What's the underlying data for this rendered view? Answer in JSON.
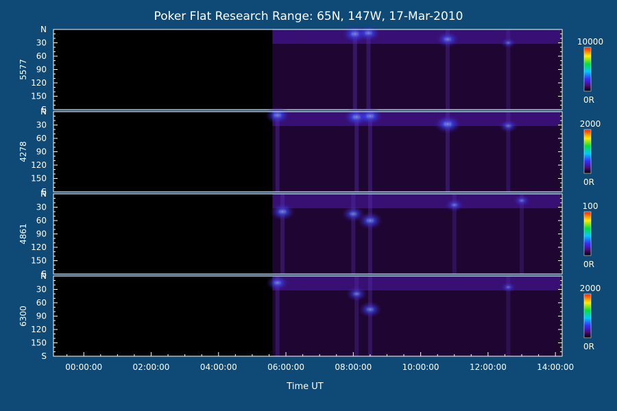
{
  "chart_data": {
    "type": "heatmap",
    "title": "Poker Flat Research Range: 65N, 147W, 17-Mar-2010",
    "xlabel": "Time UT",
    "x_tick_labels": [
      "00:00:00",
      "02:00:00",
      "04:00:00",
      "06:00:00",
      "08:00:00",
      "10:00:00",
      "12:00:00",
      "14:00:00"
    ],
    "x_range_hours": [
      -0.9,
      14.2
    ],
    "y_tick_labels": [
      "N",
      "30",
      "60",
      "90",
      "120",
      "150",
      "S"
    ],
    "y_range_deg": [
      0,
      180
    ],
    "data_start_hour": 5.6,
    "panels": [
      {
        "label": "5577",
        "colorbar_max": "10000",
        "colorbar_min": "0R",
        "events": [
          {
            "t": 8.05,
            "deg": 10,
            "strength": 0.95
          },
          {
            "t": 8.45,
            "deg": 8,
            "strength": 0.85
          },
          {
            "t": 10.8,
            "deg": 22,
            "strength": 0.8
          },
          {
            "t": 12.6,
            "deg": 30,
            "strength": 0.4
          }
        ]
      },
      {
        "label": "4278",
        "colorbar_max": "2000",
        "colorbar_min": "0R",
        "events": [
          {
            "t": 5.75,
            "deg": 8,
            "strength": 0.9
          },
          {
            "t": 8.1,
            "deg": 12,
            "strength": 1.0
          },
          {
            "t": 8.5,
            "deg": 10,
            "strength": 0.95
          },
          {
            "t": 10.8,
            "deg": 28,
            "strength": 1.0
          },
          {
            "t": 12.6,
            "deg": 32,
            "strength": 0.6
          }
        ]
      },
      {
        "label": "4861",
        "colorbar_max": "100",
        "colorbar_min": "0R",
        "events": [
          {
            "t": 5.9,
            "deg": 40,
            "strength": 0.9
          },
          {
            "t": 8.0,
            "deg": 45,
            "strength": 0.8
          },
          {
            "t": 8.5,
            "deg": 60,
            "strength": 0.9
          },
          {
            "t": 11.0,
            "deg": 25,
            "strength": 0.6
          },
          {
            "t": 13.0,
            "deg": 15,
            "strength": 0.5
          }
        ]
      },
      {
        "label": "6300",
        "colorbar_max": "2000",
        "colorbar_min": "0R",
        "events": [
          {
            "t": 5.75,
            "deg": 15,
            "strength": 0.8
          },
          {
            "t": 8.1,
            "deg": 40,
            "strength": 0.7
          },
          {
            "t": 8.5,
            "deg": 75,
            "strength": 0.8
          },
          {
            "t": 12.6,
            "deg": 25,
            "strength": 0.4
          }
        ]
      }
    ]
  }
}
